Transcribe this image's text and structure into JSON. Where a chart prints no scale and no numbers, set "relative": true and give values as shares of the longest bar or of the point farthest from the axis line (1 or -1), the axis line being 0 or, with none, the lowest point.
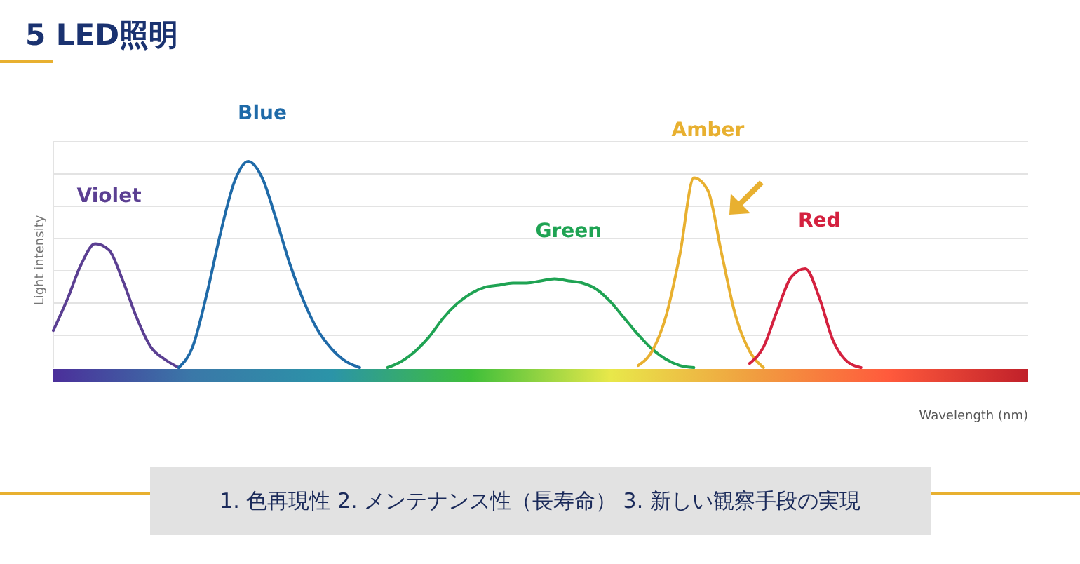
{
  "chart_data": {
    "type": "line",
    "title": "5 LED照明",
    "xlabel": "Wavelength (nm)",
    "ylabel": "Light intensity",
    "annotations": [
      "1. 色再現性  2. メンテナンス性（長寿命）  3. 新しい観察手段の実現"
    ],
    "relative": true,
    "grid": true,
    "legend": false,
    "marker": "none",
    "line_style": "solid",
    "categories": [
      null,
      null,
      null,
      null,
      null,
      null,
      null,
      null,
      null,
      null,
      null,
      null,
      null,
      null,
      null,
      null,
      null,
      null,
      null,
      null,
      null,
      null,
      null,
      null,
      null,
      null,
      null,
      null,
      null,
      null,
      null,
      null,
      null,
      null,
      null,
      null,
      null,
      null,
      null,
      null,
      null,
      null,
      null,
      null,
      null,
      null,
      null,
      null,
      null,
      null,
      null,
      null,
      null,
      null,
      null,
      null,
      null,
      null,
      null,
      null,
      null,
      null,
      null,
      null,
      null,
      null,
      null,
      null,
      null,
      null,
      null
    ],
    "series": [
      {
        "name": "Violet",
        "color": "#5b3f92",
        "values": [
          0.18,
          0.33,
          0.5,
          0.6,
          0.57,
          0.42,
          0.24,
          0.1,
          0.04,
          0,
          null,
          null,
          null,
          null,
          null,
          null,
          null,
          null,
          null,
          null,
          null,
          null,
          null,
          null,
          null,
          null,
          null,
          null,
          null,
          null,
          null,
          null,
          null,
          null,
          null,
          null,
          null,
          null,
          null,
          null,
          null,
          null,
          null,
          null,
          null,
          null,
          null,
          null,
          null,
          null,
          null,
          null,
          null,
          null,
          null,
          null,
          null,
          null,
          null,
          null,
          null,
          null,
          null,
          null,
          null,
          null,
          null,
          null,
          null,
          null,
          null
        ]
      },
      {
        "name": "Blue",
        "color": "#1f6aa8",
        "values": [
          null,
          null,
          null,
          null,
          null,
          null,
          null,
          null,
          null,
          0,
          0.1,
          0.35,
          0.65,
          0.9,
          1,
          0.92,
          0.72,
          0.5,
          0.32,
          0.18,
          0.09,
          0.03,
          0,
          null,
          null,
          null,
          null,
          null,
          null,
          null,
          null,
          null,
          null,
          null,
          null,
          null,
          null,
          null,
          null,
          null,
          null,
          null,
          null,
          null,
          null,
          null,
          null,
          null,
          null,
          null,
          null,
          null,
          null,
          null,
          null,
          null,
          null,
          null,
          null,
          null,
          null,
          null,
          null,
          null,
          null,
          null,
          null,
          null,
          null,
          null,
          null
        ]
      },
      {
        "name": "Green",
        "color": "#1fa353",
        "values": [
          null,
          null,
          null,
          null,
          null,
          null,
          null,
          null,
          null,
          null,
          null,
          null,
          null,
          null,
          null,
          null,
          null,
          null,
          null,
          null,
          null,
          null,
          null,
          null,
          0,
          0.03,
          0.08,
          0.15,
          0.24,
          0.31,
          0.36,
          0.39,
          0.4,
          0.41,
          0.41,
          0.42,
          0.43,
          0.42,
          0.41,
          0.38,
          0.32,
          0.24,
          0.16,
          0.09,
          0.04,
          0.01,
          0,
          null,
          null,
          null,
          null,
          null,
          null,
          null,
          null,
          null,
          null,
          null,
          null,
          null,
          null,
          null,
          null,
          null,
          null,
          null,
          null,
          null,
          null,
          null,
          null
        ]
      },
      {
        "name": "Amber",
        "color": "#e8b030",
        "values": [
          null,
          null,
          null,
          null,
          null,
          null,
          null,
          null,
          null,
          null,
          null,
          null,
          null,
          null,
          null,
          null,
          null,
          null,
          null,
          null,
          null,
          null,
          null,
          null,
          null,
          null,
          null,
          null,
          null,
          null,
          null,
          null,
          null,
          null,
          null,
          null,
          null,
          null,
          null,
          null,
          null,
          null,
          0.01,
          0.08,
          0.25,
          0.55,
          0.92,
          0.86,
          0.55,
          0.25,
          0.08,
          0,
          null,
          null,
          null,
          null,
          null,
          null,
          null,
          null,
          null,
          null,
          null,
          null,
          null,
          null,
          null,
          null,
          null,
          null,
          null
        ]
      },
      {
        "name": "Red",
        "color": "#d4213f",
        "values": [
          null,
          null,
          null,
          null,
          null,
          null,
          null,
          null,
          null,
          null,
          null,
          null,
          null,
          null,
          null,
          null,
          null,
          null,
          null,
          null,
          null,
          null,
          null,
          null,
          null,
          null,
          null,
          null,
          null,
          null,
          null,
          null,
          null,
          null,
          null,
          null,
          null,
          null,
          null,
          null,
          null,
          null,
          null,
          null,
          null,
          null,
          null,
          null,
          null,
          null,
          0.02,
          0.1,
          0.28,
          0.44,
          0.48,
          0.34,
          0.13,
          0.03,
          0,
          null,
          null,
          null,
          null,
          null,
          null,
          null,
          null,
          null,
          null,
          null,
          null
        ]
      }
    ]
  }
}
